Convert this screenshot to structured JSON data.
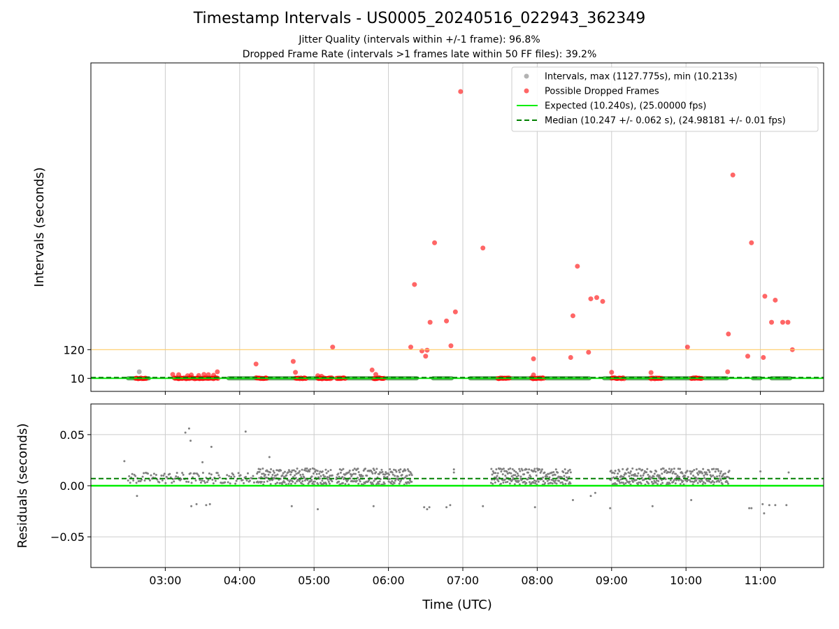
{
  "header": {
    "title": "Timestamp Intervals - US0005_20240516_022943_362349",
    "subtitle_1": "Jitter Quality (intervals within +/-1 frame): 96.8%",
    "subtitle_2": "Dropped Frame Rate (intervals >1 frames late within 50 FF files): 39.2%"
  },
  "colors": {
    "intervals": "#808080",
    "dropped": "#ff0000",
    "expected": "#00ee00",
    "median": "#008000",
    "threshold": "#ffcc66",
    "grid": "#cccccc"
  },
  "chart_data": [
    {
      "type": "scatter",
      "panel": "top",
      "ylabel": "Intervals (seconds)",
      "xlabel": "",
      "x_unit": "hours (UTC)",
      "xlim": [
        2.0,
        11.85
      ],
      "ylim": [
        -40,
        1220
      ],
      "yticks": [
        10,
        120
      ],
      "xticks": [
        "03:00",
        "04:00",
        "05:00",
        "06:00",
        "07:00",
        "08:00",
        "09:00",
        "10:00",
        "11:00"
      ],
      "xtick_values": [
        3,
        4,
        5,
        6,
        7,
        8,
        9,
        10,
        11
      ],
      "grid": "x",
      "legend_position": "top-right",
      "legend": [
        "Intervals, max (1127.775s), min (10.213s)",
        "Possible Dropped Frames",
        "Expected (10.240s), (25.00000 fps)",
        "Median (10.247 +/- 0.062 s), (24.98181 +/- 0.01 fps)"
      ],
      "baseline_segments": [
        [
          2.5,
          2.62
        ],
        [
          2.72,
          2.78
        ],
        [
          3.85,
          4.22
        ],
        [
          4.35,
          4.75
        ],
        [
          4.93,
          5.05
        ],
        [
          5.45,
          5.8
        ],
        [
          5.98,
          6.38
        ],
        [
          6.6,
          6.85
        ],
        [
          7.1,
          7.45
        ],
        [
          7.65,
          7.92
        ],
        [
          8.12,
          8.7
        ],
        [
          8.9,
          9.0
        ],
        [
          9.2,
          9.5
        ],
        [
          9.7,
          10.05
        ],
        [
          10.25,
          10.55
        ],
        [
          10.9,
          11.0
        ],
        [
          11.15,
          11.4
        ]
      ],
      "expected_value": 10.24,
      "median_value": 10.247,
      "threshold_value": 120,
      "dropped_runs": [
        [
          2.6,
          2.75
        ],
        [
          3.12,
          3.72
        ],
        [
          4.22,
          4.37
        ],
        [
          4.75,
          4.9
        ],
        [
          5.05,
          5.25
        ],
        [
          5.3,
          5.42
        ],
        [
          5.8,
          5.95
        ],
        [
          7.47,
          7.63
        ],
        [
          7.92,
          8.1
        ],
        [
          9.0,
          9.17
        ],
        [
          9.52,
          9.68
        ],
        [
          10.07,
          10.22
        ]
      ],
      "dropped_points": [
        [
          3.1,
          25
        ],
        [
          3.18,
          24
        ],
        [
          3.3,
          20
        ],
        [
          3.35,
          23
        ],
        [
          3.45,
          21
        ],
        [
          3.52,
          25
        ],
        [
          3.58,
          24
        ],
        [
          3.65,
          22
        ],
        [
          3.7,
          35
        ],
        [
          4.22,
          65
        ],
        [
          4.72,
          75
        ],
        [
          4.75,
          33
        ],
        [
          5.05,
          20
        ],
        [
          5.1,
          18
        ],
        [
          5.25,
          130
        ],
        [
          5.78,
          42
        ],
        [
          5.83,
          25
        ],
        [
          6.3,
          130
        ],
        [
          6.35,
          370
        ],
        [
          6.45,
          115
        ],
        [
          6.5,
          95
        ],
        [
          6.52,
          118
        ],
        [
          6.56,
          225
        ],
        [
          6.62,
          530
        ],
        [
          6.78,
          230
        ],
        [
          6.84,
          135
        ],
        [
          6.9,
          265
        ],
        [
          6.97,
          1110
        ],
        [
          7.27,
          510
        ],
        [
          7.95,
          23
        ],
        [
          7.95,
          85
        ],
        [
          8.45,
          90
        ],
        [
          8.48,
          250
        ],
        [
          8.54,
          440
        ],
        [
          8.69,
          110
        ],
        [
          8.72,
          315
        ],
        [
          8.8,
          320
        ],
        [
          8.88,
          305
        ],
        [
          9.0,
          33
        ],
        [
          9.53,
          32
        ],
        [
          10.02,
          130
        ],
        [
          10.56,
          35
        ],
        [
          10.57,
          180
        ],
        [
          10.63,
          790
        ],
        [
          10.83,
          95
        ],
        [
          10.88,
          530
        ],
        [
          11.04,
          90
        ],
        [
          11.06,
          325
        ],
        [
          11.15,
          225
        ],
        [
          11.2,
          310
        ],
        [
          11.3,
          225
        ],
        [
          11.37,
          225
        ],
        [
          11.43,
          120
        ]
      ],
      "interval_outliers": [
        [
          2.65,
          35
        ]
      ]
    },
    {
      "type": "scatter",
      "panel": "bottom",
      "ylabel": "Residuals (seconds)",
      "xlabel": "Time (UTC)",
      "xlim": [
        2.0,
        11.85
      ],
      "ylim": [
        -0.08,
        0.08
      ],
      "yticks": [
        0.05,
        0.0,
        -0.05
      ],
      "ytick_labels": [
        "0.05",
        "0.00",
        "−0.05"
      ],
      "xticks": [
        "03:00",
        "04:00",
        "05:00",
        "06:00",
        "07:00",
        "08:00",
        "09:00",
        "10:00",
        "11:00"
      ],
      "xtick_values": [
        3,
        4,
        5,
        6,
        7,
        8,
        9,
        10,
        11
      ],
      "grid": "both",
      "expected_value": 0.0,
      "median_value": 0.007,
      "dense_clusters": [
        [
          4.23,
          5.25
        ],
        [
          5.3,
          6.32
        ],
        [
          7.38,
          8.45
        ],
        [
          8.98,
          10.03
        ],
        [
          10.05,
          10.58
        ]
      ],
      "sparse_clusters": [
        [
          2.5,
          3.2
        ],
        [
          3.2,
          4.2
        ]
      ],
      "outliers": [
        [
          2.45,
          0.024
        ],
        [
          2.62,
          -0.01
        ],
        [
          3.27,
          0.052
        ],
        [
          3.32,
          0.056
        ],
        [
          3.34,
          0.044
        ],
        [
          3.35,
          -0.02
        ],
        [
          3.42,
          -0.018
        ],
        [
          3.5,
          0.023
        ],
        [
          3.55,
          -0.019
        ],
        [
          3.6,
          -0.018
        ],
        [
          3.62,
          0.038
        ],
        [
          4.08,
          0.053
        ],
        [
          4.4,
          0.028
        ],
        [
          4.7,
          -0.02
        ],
        [
          5.05,
          -0.023
        ],
        [
          5.8,
          -0.02
        ],
        [
          6.48,
          -0.021
        ],
        [
          6.52,
          -0.023
        ],
        [
          6.55,
          -0.021
        ],
        [
          6.78,
          -0.021
        ],
        [
          6.83,
          -0.019
        ],
        [
          6.88,
          0.016
        ],
        [
          6.88,
          0.013
        ],
        [
          7.27,
          -0.02
        ],
        [
          7.97,
          -0.021
        ],
        [
          8.48,
          -0.014
        ],
        [
          8.72,
          -0.01
        ],
        [
          8.78,
          -0.007
        ],
        [
          8.98,
          -0.022
        ],
        [
          9.55,
          -0.02
        ],
        [
          10.07,
          -0.014
        ],
        [
          10.85,
          -0.022
        ],
        [
          10.88,
          -0.022
        ],
        [
          11.0,
          0.014
        ],
        [
          11.03,
          -0.018
        ],
        [
          11.05,
          -0.027
        ],
        [
          11.12,
          -0.019
        ],
        [
          11.2,
          -0.019
        ],
        [
          11.35,
          -0.019
        ],
        [
          11.38,
          0.013
        ]
      ]
    }
  ]
}
